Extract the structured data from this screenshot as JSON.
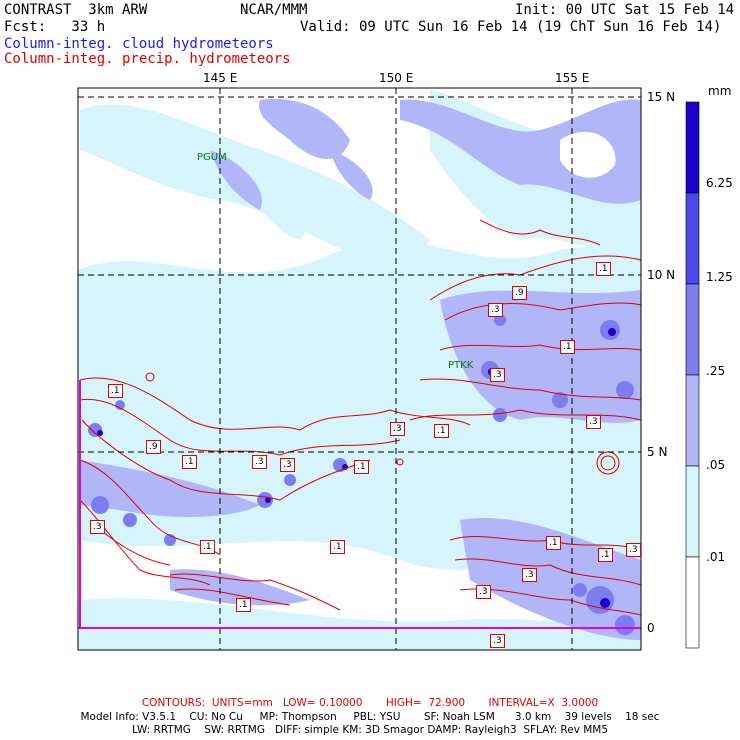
{
  "header": {
    "model": "CONTRAST  3km ARW",
    "org": "NCAR/MMM",
    "init": "Init: 00 UTC Sat 15 Feb 14",
    "fcst": "Fcst:   33 h",
    "valid": "Valid: 09 UTC Sun 16 Feb 14 (19 ChT Sun 16 Feb 14)",
    "legend_cloud": "Column-integ. cloud hydrometeors",
    "legend_precip": "Column-integ. precip. hydrometeors"
  },
  "map": {
    "lon_labels": [
      "145 E",
      "150 E",
      "155 E"
    ],
    "lat_labels": [
      "15 N",
      "10 N",
      "5 N",
      "0"
    ],
    "stations": [
      "PGUM",
      "PTKK"
    ],
    "contour_labels": [
      ".1",
      ".9",
      ".1",
      ".3",
      ".3",
      ".1",
      ".9",
      ".1",
      ".3",
      ".1",
      ".3",
      ".1",
      ".3",
      ".1",
      ".3",
      ".3",
      ".1",
      ".3",
      ".1",
      ".3",
      ".1",
      ".3",
      ".3",
      ".1"
    ]
  },
  "colorbar": {
    "unit": "mm",
    "levels": [
      "6.25",
      "1.25",
      ".25",
      ".05",
      ".01"
    ],
    "colors": [
      "#1e00cc",
      "#4a4ae8",
      "#7d7df2",
      "#b0b6f8",
      "#d6f4fb",
      "#ffffff"
    ]
  },
  "footer": {
    "contours": "CONTOURS:  UNITS=mm   LOW= 0.10000       HIGH=  72.900       INTERVAL=X  3.0000",
    "line1": "Model Info: V3.5.1    CU: No Cu     MP: Thompson     PBL: YSU       SF: Noah LSM      3.0 km    39 levels    18 sec",
    "line2": "LW: RRTMG    SW: RRTMG   DIFF: simple KM: 3D Smagor DAMP: Rayleigh3  SFLAY: Rev MM5"
  }
}
